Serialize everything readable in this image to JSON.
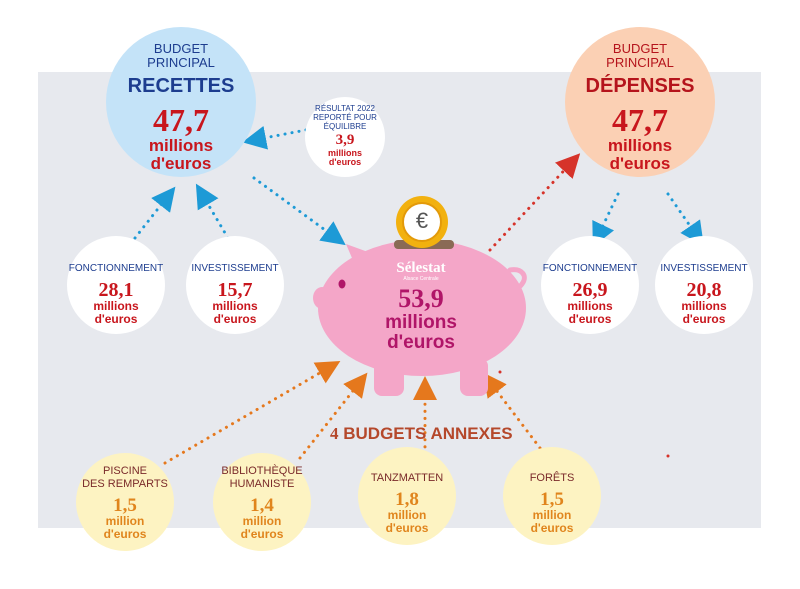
{
  "recettes": {
    "label_top": "BUDGET\nPRINCIPAL",
    "label_main": "RECETTES",
    "amount": "47,7",
    "unit_line1": "millions",
    "unit_line2": "d'euros",
    "fonctionnement": {
      "label": "FONCTIONNEMENT",
      "amount": "28,1",
      "unit_line1": "millions",
      "unit_line2": "d'euros"
    },
    "investissement": {
      "label": "INVESTISSEMENT",
      "amount": "15,7",
      "unit_line1": "millions",
      "unit_line2": "d'euros"
    }
  },
  "resultat": {
    "label": "RÉSULTAT 2022\nREPORTÉ POUR\nÉQUILIBRE",
    "amount": "3,9",
    "unit_line1": "millions",
    "unit_line2": "d'euros"
  },
  "depenses": {
    "label_top": "BUDGET\nPRINCIPAL",
    "label_main": "DÉPENSES",
    "amount": "47,7",
    "unit_line1": "millions",
    "unit_line2": "d'euros",
    "fonctionnement": {
      "label": "FONCTIONNEMENT",
      "amount": "26,9",
      "unit_line1": "millions",
      "unit_line2": "d'euros"
    },
    "investissement": {
      "label": "INVESTISSEMENT",
      "amount": "20,8",
      "unit_line1": "millions",
      "unit_line2": "d'euros"
    }
  },
  "total": {
    "brand": "Sélestat",
    "brand_sub": "Alsace Centrale",
    "coin_symbol": "€",
    "amount": "53,9",
    "unit_line1": "millions",
    "unit_line2": "d'euros"
  },
  "annexes": {
    "count": "4",
    "title": "BUDGETS ANNEXES",
    "items": [
      {
        "label": "PISCINE\nDES REMPARTS",
        "amount": "1,5",
        "unit_line1": "million",
        "unit_line2": "d'euros"
      },
      {
        "label": "BIBLIOTHÈQUE\nHUMANISTE",
        "amount": "1,4",
        "unit_line1": "million",
        "unit_line2": "d'euros"
      },
      {
        "label": "TANZMATTEN",
        "amount": "1,8",
        "unit_line1": "million",
        "unit_line2": "d'euros"
      },
      {
        "label": "FORÊTS",
        "amount": "1,5",
        "unit_line1": "million",
        "unit_line2": "d'euros"
      }
    ]
  },
  "colors": {
    "panel": "#e7e9ee",
    "recettes_circle": "#c4e3f8",
    "depenses_circle": "#fbd0b4",
    "annexe_circle": "#fdf3c2",
    "piggy": "#f4a6c8",
    "blue_arrow": "#1d9ad6",
    "red_arrow": "#d6332a",
    "orange_arrow": "#e5781d"
  },
  "icons": [
    "piggy-bank-icon",
    "euro-coin-icon"
  ]
}
